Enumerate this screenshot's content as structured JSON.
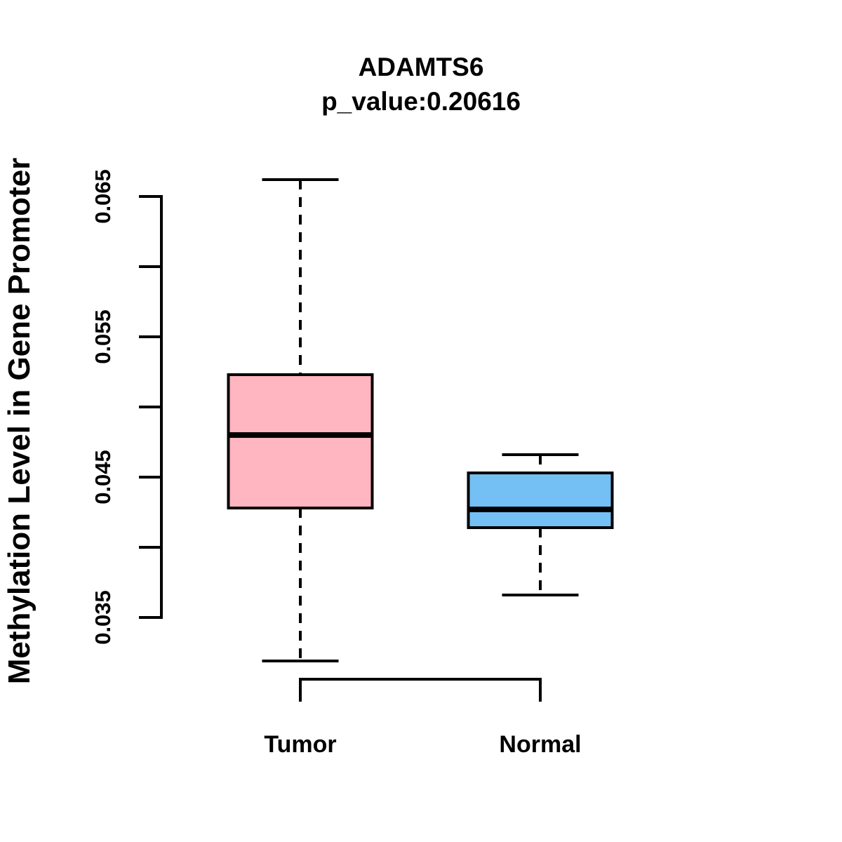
{
  "header": {
    "title": "ADAMTS6",
    "subtitle": "p_value:0.20616"
  },
  "chart_data": {
    "type": "boxplot",
    "title": "ADAMTS6",
    "subtitle": "p_value:0.20616",
    "xlabel": "",
    "ylabel": "Methylation Level in Gene Promoter",
    "ylim": [
      0.035,
      0.065
    ],
    "yticks": [
      0.035,
      0.04,
      0.045,
      0.05,
      0.055,
      0.06,
      0.065
    ],
    "ytick_labeled_values": [
      0.035,
      0.045,
      0.055,
      0.065
    ],
    "ytick_labels": [
      "0.035",
      "0.045",
      "0.055",
      "0.065"
    ],
    "grid": false,
    "legend": null,
    "line_color": "#000000",
    "whisker_style": "dashed",
    "categories": [
      "Tumor",
      "Normal"
    ],
    "groups": [
      {
        "label": "Tumor",
        "fill": "#FFB6C1",
        "whisker_low": 0.0319,
        "q1": 0.0428,
        "median": 0.048,
        "q3": 0.0523,
        "whisker_high": 0.0662,
        "outliers": []
      },
      {
        "label": "Normal",
        "fill": "#74BFF4",
        "whisker_low": 0.0366,
        "q1": 0.0414,
        "median": 0.0427,
        "q3": 0.0453,
        "whisker_high": 0.0466,
        "outliers": []
      }
    ]
  }
}
